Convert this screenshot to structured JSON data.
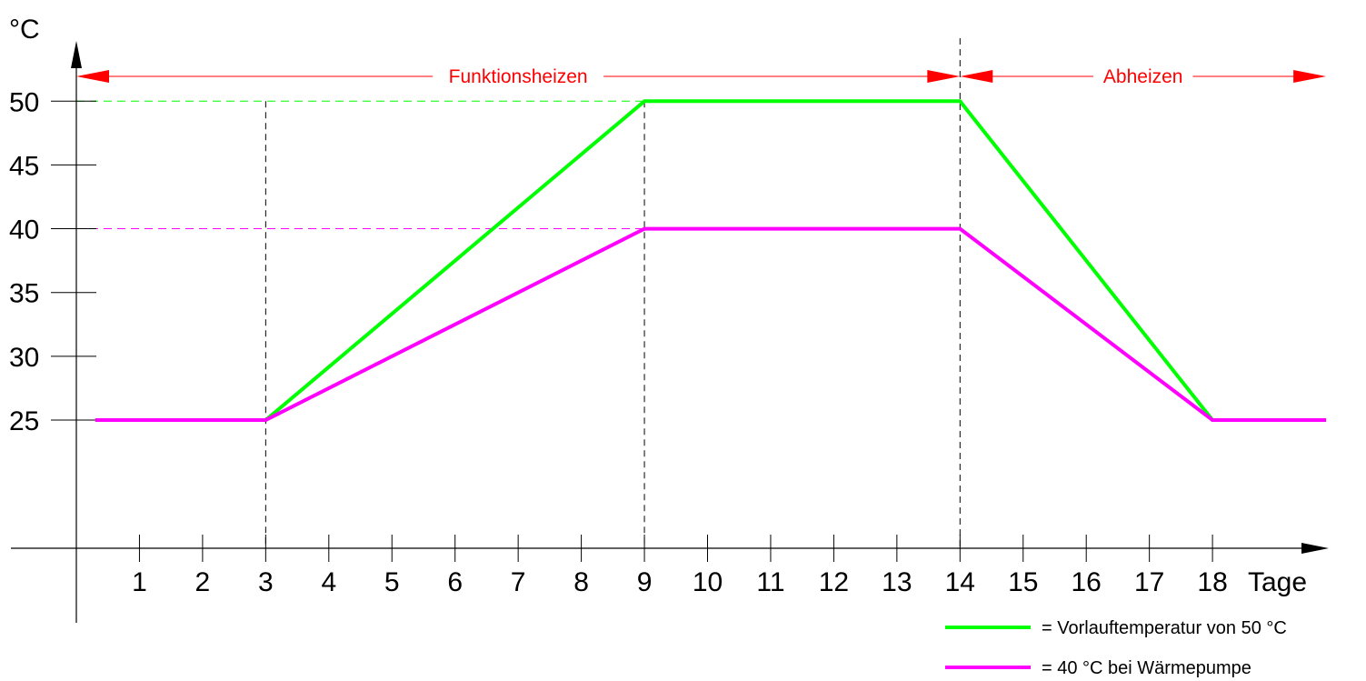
{
  "chart_data": {
    "type": "line",
    "ylabel": "°C",
    "xlabel": "Tage",
    "x_ticks": [
      1,
      2,
      3,
      4,
      5,
      6,
      7,
      8,
      9,
      10,
      11,
      12,
      13,
      14,
      15,
      16,
      17,
      18
    ],
    "y_ticks": [
      25,
      30,
      35,
      40,
      45,
      50
    ],
    "xlim": [
      0,
      20
    ],
    "ylim": [
      15,
      55
    ],
    "grid": false,
    "legend_position": "bottom-right",
    "series": [
      {
        "name": "= Vorlauftemperatur von 50 °C",
        "color": "#00ff00",
        "x": [
          0.3,
          3,
          9,
          14,
          18,
          19.8
        ],
        "y": [
          25,
          25,
          50,
          50,
          25,
          25
        ]
      },
      {
        "name": "= 40 °C bei Wärmepumpe",
        "color": "#ff00ff",
        "x": [
          0.3,
          3,
          9,
          14,
          18,
          19.8
        ],
        "y": [
          25,
          25,
          40,
          40,
          25,
          25
        ]
      }
    ],
    "phases": [
      {
        "label": "Funktionsheizen",
        "from": 0,
        "to": 14,
        "color": "#ff0000"
      },
      {
        "label": "Abheizen",
        "from": 14,
        "to": 19.8,
        "color": "#ff0000"
      }
    ],
    "vertical_markers": [
      3,
      9,
      14
    ],
    "horizontal_markers": [
      {
        "y": 50,
        "to_x": 9,
        "color": "#00ff00"
      },
      {
        "y": 40,
        "to_x": 9,
        "color": "#ff00ff"
      }
    ]
  }
}
